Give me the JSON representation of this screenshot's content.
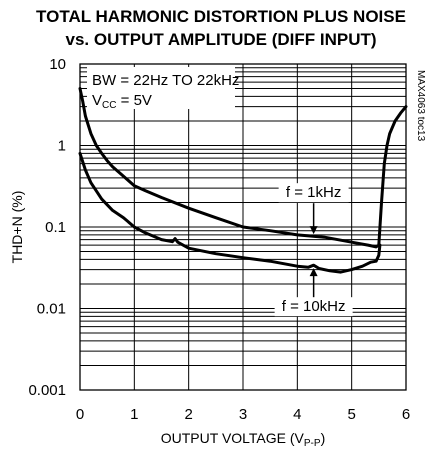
{
  "chart_data": {
    "type": "line",
    "title_line1": "TOTAL HARMONIC DISTORTION PLUS NOISE",
    "title_line2": "vs. OUTPUT AMPLITUDE (DIFF INPUT)",
    "xlabel_main": "OUTPUT VOLTAGE (V",
    "xlabel_sub": "P-P",
    "xlabel_end": ")",
    "ylabel": "THD+N (%)",
    "y_scale": "log",
    "xlim": [
      0,
      6
    ],
    "ylim": [
      0.001,
      10
    ],
    "x_ticks": [
      "0",
      "1",
      "2",
      "3",
      "4",
      "5",
      "6"
    ],
    "y_ticks": [
      "0.001",
      "0.01",
      "0.1",
      "1",
      "10"
    ],
    "grid": true,
    "conditions": {
      "bw": "BW = 22Hz TO 22kHz",
      "vcc_main": "V",
      "vcc_sub": "CC",
      "vcc_end": " = 5V"
    },
    "side_label": "MAX4063 toc13",
    "series": [
      {
        "name": "f = 1kHz",
        "x": [
          0.0,
          0.05,
          0.1,
          0.2,
          0.3,
          0.4,
          0.5,
          0.6,
          0.8,
          1.0,
          1.2,
          1.5,
          2.0,
          2.5,
          3.0,
          3.5,
          4.0,
          4.5,
          5.0,
          5.3,
          5.45,
          5.5,
          5.55,
          5.6,
          5.65,
          5.7,
          5.8,
          5.9,
          6.0
        ],
        "y": [
          5.0,
          3.5,
          2.3,
          1.4,
          1.0,
          0.8,
          0.65,
          0.55,
          0.42,
          0.32,
          0.28,
          0.23,
          0.17,
          0.13,
          0.1,
          0.09,
          0.08,
          0.075,
          0.065,
          0.06,
          0.057,
          0.06,
          0.2,
          0.6,
          1.0,
          1.4,
          2.0,
          2.5,
          3.0
        ]
      },
      {
        "name": "f = 10kHz",
        "x": [
          0.0,
          0.1,
          0.2,
          0.4,
          0.6,
          0.8,
          1.0,
          1.2,
          1.5,
          1.7,
          1.75,
          1.8,
          2.0,
          2.5,
          3.0,
          3.5,
          4.0,
          4.2,
          4.3,
          4.4,
          4.6,
          4.8,
          5.0,
          5.2,
          5.35,
          5.45,
          5.5,
          5.52
        ],
        "y": [
          0.8,
          0.5,
          0.35,
          0.22,
          0.16,
          0.13,
          0.1,
          0.085,
          0.07,
          0.066,
          0.072,
          0.065,
          0.055,
          0.047,
          0.042,
          0.038,
          0.033,
          0.032,
          0.034,
          0.031,
          0.029,
          0.028,
          0.03,
          0.033,
          0.037,
          0.038,
          0.045,
          0.06
        ]
      }
    ],
    "annotations": [
      {
        "text": "f = 1kHz",
        "x": 4.3,
        "y": 0.075,
        "direction": "down"
      },
      {
        "text": "f = 10kHz",
        "x": 4.3,
        "y": 0.034,
        "direction": "up"
      }
    ]
  }
}
